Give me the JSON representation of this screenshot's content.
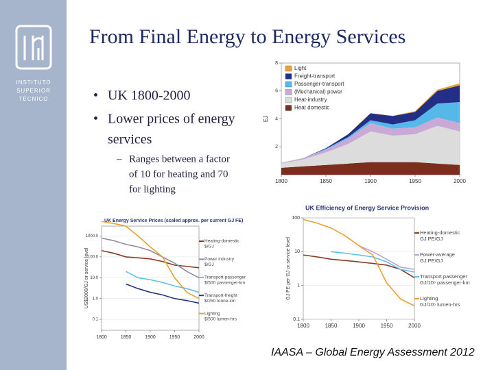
{
  "slide": {
    "logo_text": [
      "INSTITUTO",
      "SUPERIOR",
      "TÉCNICO"
    ],
    "title": "From Final Energy to Energy Services",
    "bullets": [
      "UK 1800-2000",
      "Lower prices of energy",
      "services"
    ],
    "sub_bullets": [
      "Ranges between a factor",
      "of 10 for heating and 70",
      "for lighting"
    ],
    "footer": "IAASA – Global Energy Assessment 2012"
  },
  "chart_data": [
    {
      "type": "stacked_area",
      "y_label": "EJ",
      "x": [
        1800,
        1825,
        1850,
        1875,
        1900,
        1925,
        1950,
        1975,
        2000
      ],
      "xlim": [
        1800,
        2000
      ],
      "xticks": [
        1800,
        1850,
        1900,
        1950,
        2000
      ],
      "ylim": [
        0,
        8
      ],
      "yticks": [
        2,
        4,
        6,
        8
      ],
      "series": [
        {
          "name": "Heat domestic",
          "color": "#7b2e1c",
          "values": [
            0.5,
            0.6,
            0.7,
            0.8,
            0.9,
            0.9,
            0.9,
            0.8,
            0.7
          ]
        },
        {
          "name": "Heat-industry",
          "color": "#dcdcdc",
          "values": [
            0.3,
            0.5,
            0.9,
            1.4,
            2.2,
            1.9,
            2.0,
            2.7,
            2.4
          ]
        },
        {
          "name": "(Mechanical) power",
          "color": "#c9a9d6",
          "values": [
            0.05,
            0.1,
            0.2,
            0.4,
            0.6,
            0.5,
            0.5,
            0.6,
            0.6
          ]
        },
        {
          "name": "Passenger-transport",
          "color": "#55b8e8",
          "values": [
            0,
            0,
            0.05,
            0.1,
            0.2,
            0.3,
            0.5,
            1.0,
            1.5
          ]
        },
        {
          "name": "Freight-transport",
          "color": "#232f86",
          "values": [
            0,
            0,
            0.05,
            0.2,
            0.5,
            0.6,
            0.6,
            0.9,
            1.2
          ]
        },
        {
          "name": "Light",
          "color": "#e9a23b",
          "values": [
            0,
            0,
            0,
            0.01,
            0.02,
            0.03,
            0.05,
            0.1,
            0.15
          ]
        }
      ]
    },
    {
      "type": "line",
      "log_y": true,
      "title": "UK Energy Service Prices (scaled approx. per current GJ FE)",
      "y_label": "US$2000/GJ or service level",
      "x": [
        1800,
        1825,
        1850,
        1875,
        1900,
        1925,
        1950,
        1975,
        2000
      ],
      "xlim": [
        1800,
        2000
      ],
      "xticks": [
        1800,
        1850,
        1900,
        1950,
        2000
      ],
      "ylim": [
        0.03,
        3000
      ],
      "yticks": [
        {
          "value": 1000,
          "label": "1000.0"
        },
        {
          "value": 100,
          "label": "100.0"
        },
        {
          "value": 10,
          "label": "10.0"
        },
        {
          "value": 1,
          "label": "1.0"
        },
        0.1
      ],
      "series": [
        {
          "name": "Heating-domestic",
          "unit": "$/GJ",
          "color": "#8a3a22",
          "values": [
            200,
            150,
            100,
            90,
            80,
            60,
            40,
            35,
            30
          ]
        },
        {
          "name": "Power industry",
          "unit": "$/GJ",
          "color": "#8c8c9c",
          "values": [
            800,
            600,
            400,
            300,
            200,
            100,
            50,
            20,
            10
          ]
        },
        {
          "name": "Transport-passenger",
          "unit": "$/500 passenger-km",
          "color": "#5ec1ea",
          "values": [
            null,
            null,
            20,
            10,
            8,
            6,
            4,
            3,
            2
          ]
        },
        {
          "name": "Transport-freight",
          "unit": "$/250 tonne-km",
          "color": "#283580",
          "values": [
            null,
            null,
            5,
            3,
            2,
            1.5,
            1,
            0.8,
            0.6
          ]
        },
        {
          "name": "Lighting",
          "unit": "$/500 lumen-hrs",
          "color": "#e8a12e",
          "values": [
            5000,
            4000,
            3000,
            1000,
            300,
            100,
            10,
            2,
            1
          ]
        }
      ]
    },
    {
      "type": "line",
      "log_y": true,
      "title": "UK Efficiency of Energy Service Provision",
      "y_label": "GJ PE per GJ or service level",
      "x": [
        1800,
        1825,
        1850,
        1875,
        1900,
        1925,
        1950,
        1975,
        2000
      ],
      "xlim": [
        1800,
        2000
      ],
      "xticks": [
        1800,
        1850,
        1900,
        1950,
        2000
      ],
      "ylim": [
        0.1,
        100
      ],
      "yticks": [
        100,
        10,
        1,
        0.1
      ],
      "series": [
        {
          "name": "Heating-domestic",
          "unit": "GJ PE/GJ",
          "color": "#8a3a22",
          "values": [
            8,
            7,
            6,
            5.5,
            5,
            4.5,
            4,
            3,
            1.7
          ]
        },
        {
          "name": "Power-average",
          "unit": "GJ PE/GJ",
          "color": "#b9a2d4",
          "values": [
            null,
            null,
            null,
            null,
            15,
            10,
            6,
            3.5,
            3
          ]
        },
        {
          "name": "Transport passenger",
          "unit": "GJ/10⁶ passenger-km",
          "color": "#5ec1ea",
          "values": [
            null,
            null,
            10,
            9,
            8,
            7,
            5,
            3,
            2.5
          ]
        },
        {
          "name": "Lighting",
          "unit": "GJ/10⁶ lumen-hrs",
          "color": "#e8a12e",
          "values": [
            90,
            70,
            50,
            30,
            15,
            8,
            1.2,
            0.4,
            0.25
          ]
        }
      ]
    }
  ]
}
